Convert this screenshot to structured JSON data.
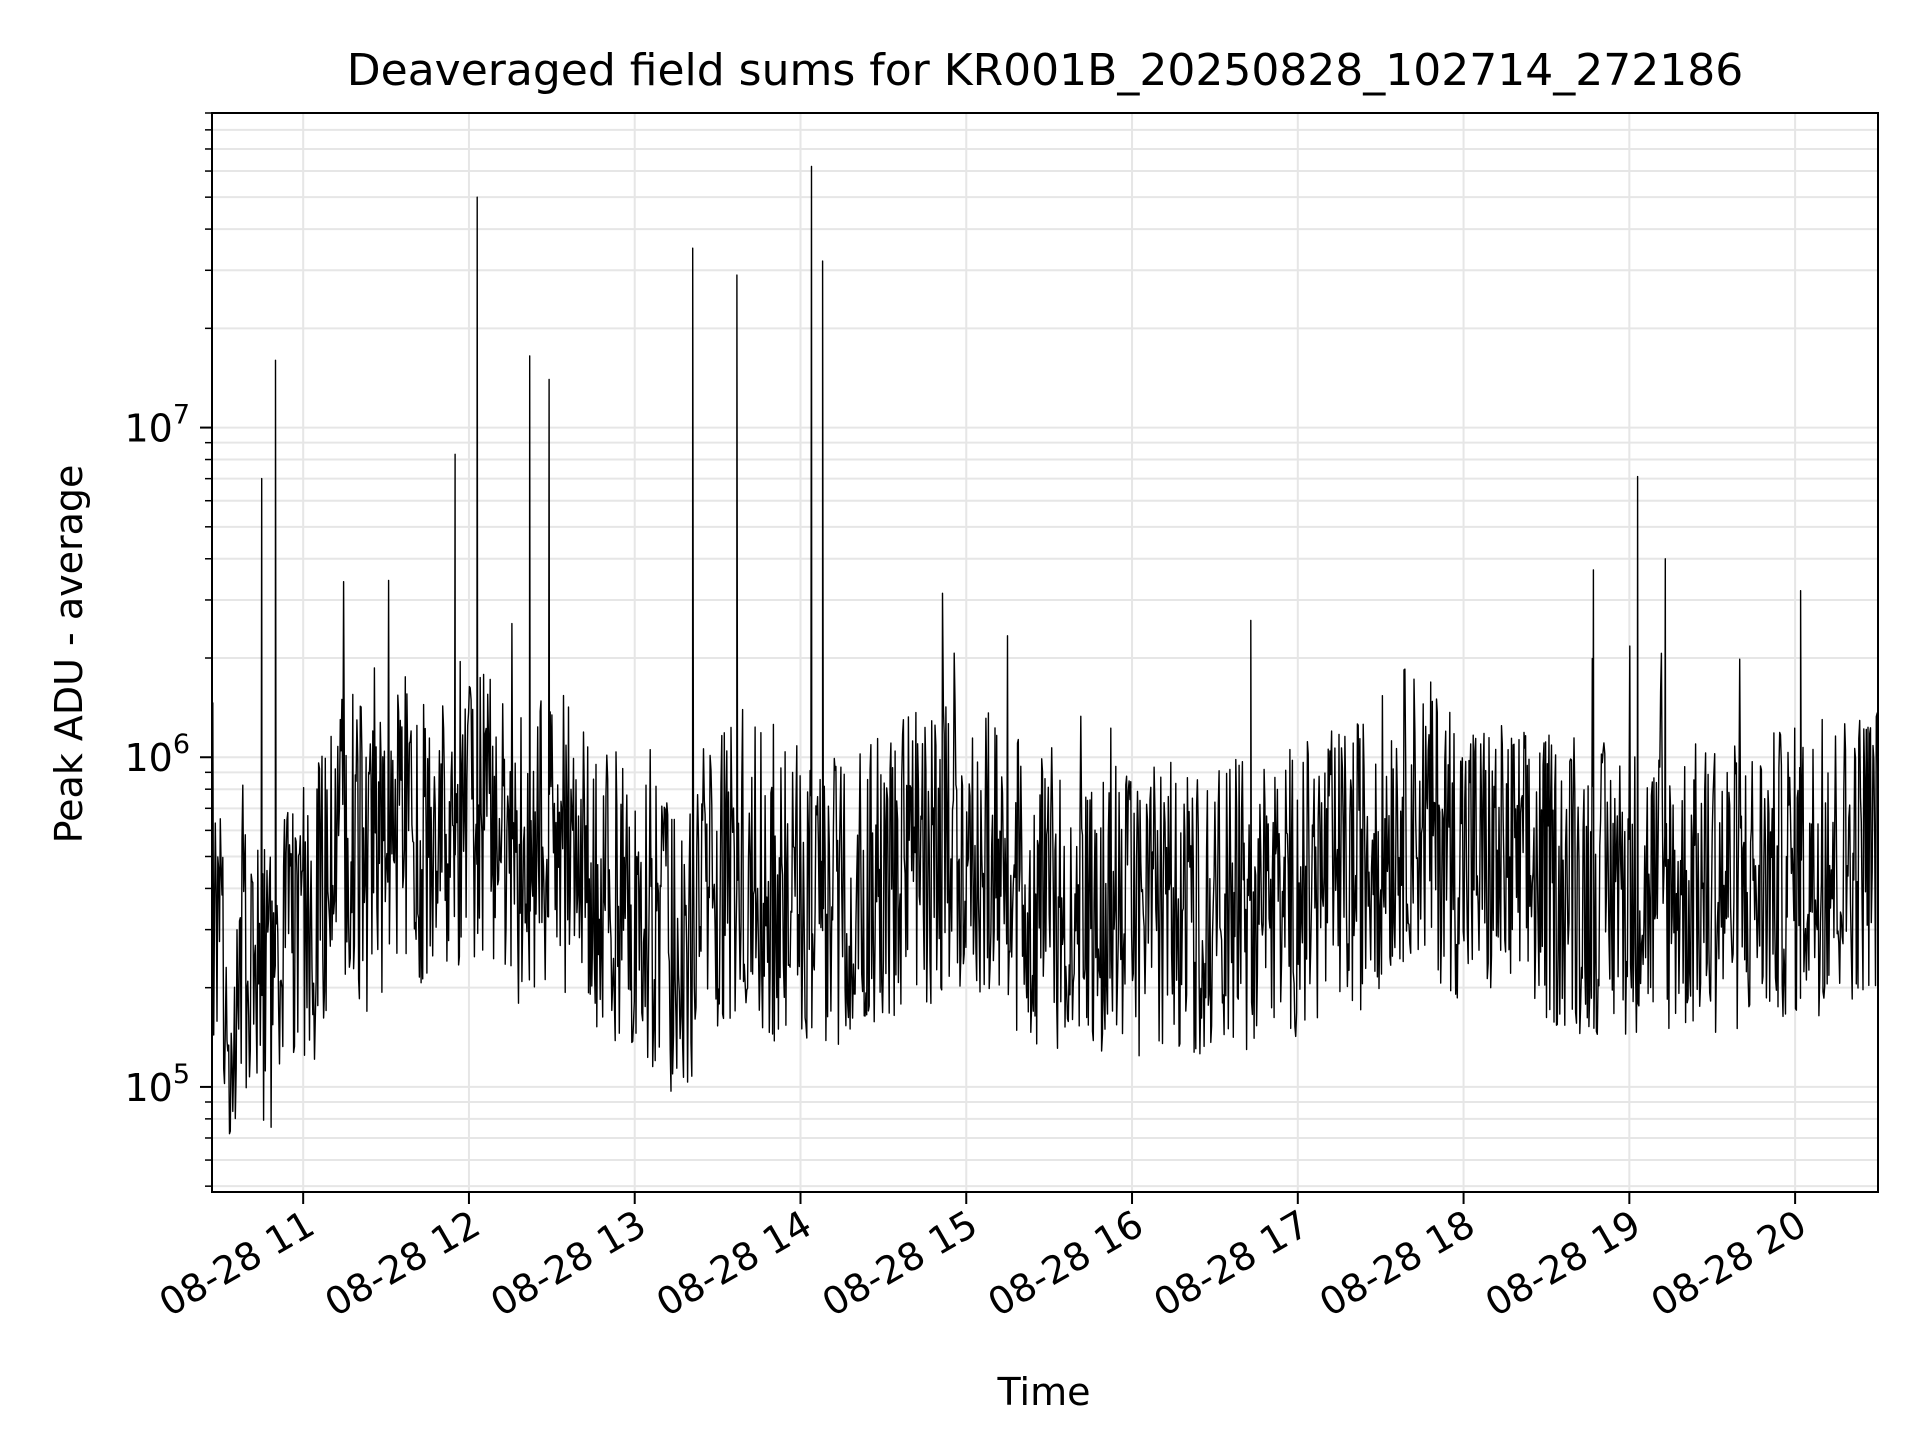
{
  "chart_data": {
    "type": "line",
    "title": "Deaveraged field sums for KR001B_20250828_102714_272186",
    "xlabel": "Time",
    "ylabel": "Peak ADU - average",
    "yscale": "log",
    "ylim": [
      48000,
      90000000
    ],
    "xlim": [
      "2025-08-28 10:27",
      "2025-08-28 20:30"
    ],
    "grid": true,
    "line_color": "#000000",
    "grid_color": "#e6e6e6",
    "x_ticks": [
      {
        "value": "2025-08-28 11:00",
        "label": "08-28 11"
      },
      {
        "value": "2025-08-28 12:00",
        "label": "08-28 12"
      },
      {
        "value": "2025-08-28 13:00",
        "label": "08-28 13"
      },
      {
        "value": "2025-08-28 14:00",
        "label": "08-28 14"
      },
      {
        "value": "2025-08-28 15:00",
        "label": "08-28 15"
      },
      {
        "value": "2025-08-28 16:00",
        "label": "08-28 16"
      },
      {
        "value": "2025-08-28 17:00",
        "label": "08-28 17"
      },
      {
        "value": "2025-08-28 18:00",
        "label": "08-28 18"
      },
      {
        "value": "2025-08-28 19:00",
        "label": "08-28 19"
      },
      {
        "value": "2025-08-28 20:00",
        "label": "08-28 20"
      }
    ],
    "y_ticks": [
      {
        "value": 100000,
        "base": "10",
        "exp": "5"
      },
      {
        "value": 1000000,
        "base": "10",
        "exp": "6"
      },
      {
        "value": 10000000,
        "base": "10",
        "exp": "7"
      }
    ],
    "series": [
      {
        "approximate": true,
        "points": [
          [
            "2025-08-28 10:27",
            300000
          ],
          [
            "2025-08-28 10:33",
            180000
          ],
          [
            "2025-08-28 10:40",
            230000
          ],
          [
            "2025-08-28 10:45",
            7000000
          ],
          [
            "2025-08-28 10:48",
            200000
          ],
          [
            "2025-08-28 10:50",
            16000000
          ],
          [
            "2025-08-28 10:53",
            250000
          ],
          [
            "2025-08-28 11:05",
            350000
          ],
          [
            "2025-08-28 11:15",
            600000
          ],
          [
            "2025-08-28 11:25",
            450000
          ],
          [
            "2025-08-28 11:35",
            700000
          ],
          [
            "2025-08-28 11:45",
            500000
          ],
          [
            "2025-08-28 11:55",
            8300000
          ],
          [
            "2025-08-28 11:58",
            600000
          ],
          [
            "2025-08-28 12:03",
            50000000
          ],
          [
            "2025-08-28 12:06",
            700000
          ],
          [
            "2025-08-28 12:15",
            500000
          ],
          [
            "2025-08-28 12:22",
            16500000
          ],
          [
            "2025-08-28 12:24",
            500000
          ],
          [
            "2025-08-28 12:29",
            14000000
          ],
          [
            "2025-08-28 12:31",
            600000
          ],
          [
            "2025-08-28 12:45",
            400000
          ],
          [
            "2025-08-28 13:00",
            350000
          ],
          [
            "2025-08-28 13:10",
            280000
          ],
          [
            "2025-08-28 13:20",
            250000
          ],
          [
            "2025-08-28 13:21",
            35000000
          ],
          [
            "2025-08-28 13:23",
            400000
          ],
          [
            "2025-08-28 13:35",
            450000
          ],
          [
            "2025-08-28 13:37",
            29000000
          ],
          [
            "2025-08-28 13:39",
            500000
          ],
          [
            "2025-08-28 13:50",
            380000
          ],
          [
            "2025-08-28 14:04",
            62000000
          ],
          [
            "2025-08-28 14:06",
            400000
          ],
          [
            "2025-08-28 14:08",
            32000000
          ],
          [
            "2025-08-28 14:10",
            350000
          ],
          [
            "2025-08-28 14:30",
            450000
          ],
          [
            "2025-08-28 15:00",
            550000
          ],
          [
            "2025-08-28 15:20",
            400000
          ],
          [
            "2025-08-28 15:40",
            300000
          ],
          [
            "2025-08-28 16:00",
            350000
          ],
          [
            "2025-08-28 16:20",
            350000
          ],
          [
            "2025-08-28 16:43",
            2600000
          ],
          [
            "2025-08-28 16:45",
            350000
          ],
          [
            "2025-08-28 17:00",
            400000
          ],
          [
            "2025-08-28 17:20",
            450000
          ],
          [
            "2025-08-28 17:40",
            700000
          ],
          [
            "2025-08-28 18:00",
            500000
          ],
          [
            "2025-08-28 18:20",
            450000
          ],
          [
            "2025-08-28 18:40",
            400000
          ],
          [
            "2025-08-28 18:47",
            3700000
          ],
          [
            "2025-08-28 18:50",
            400000
          ],
          [
            "2025-08-28 19:03",
            7100000
          ],
          [
            "2025-08-28 19:05",
            400000
          ],
          [
            "2025-08-28 19:13",
            4000000
          ],
          [
            "2025-08-28 19:16",
            400000
          ],
          [
            "2025-08-28 19:40",
            400000
          ],
          [
            "2025-08-28 20:00",
            450000
          ],
          [
            "2025-08-28 20:02",
            3200000
          ],
          [
            "2025-08-28 20:05",
            450000
          ],
          [
            "2025-08-28 20:30",
            550000
          ]
        ]
      }
    ]
  }
}
